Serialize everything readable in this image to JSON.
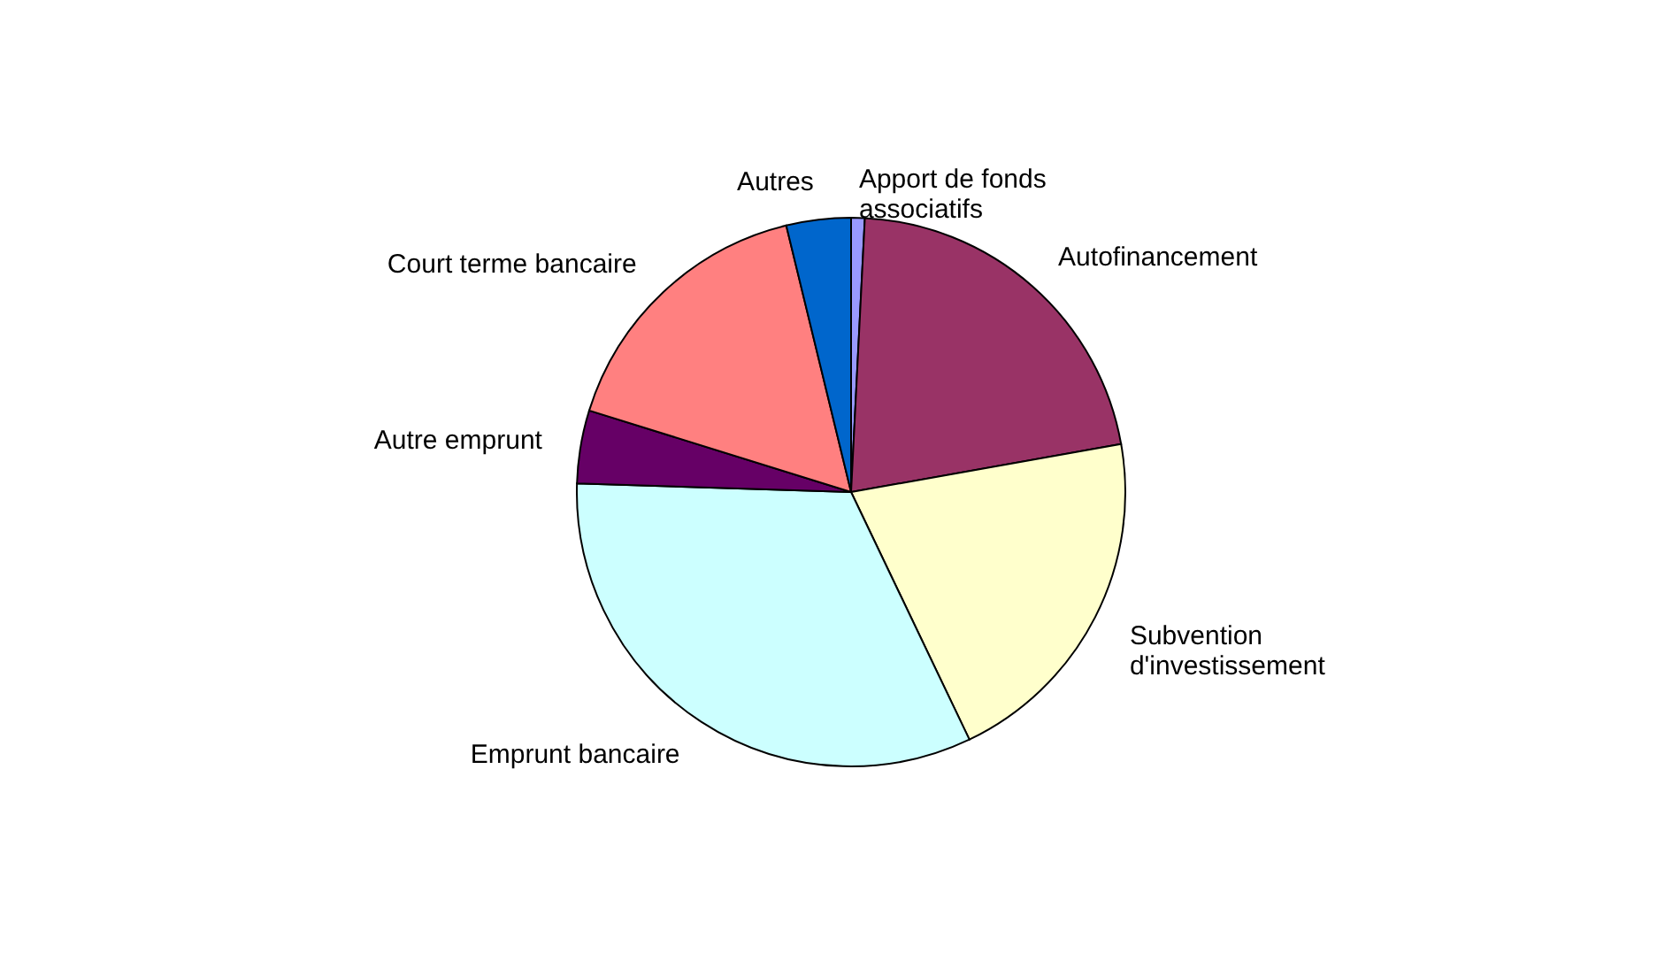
{
  "chart_data": {
    "type": "pie",
    "categories": [
      "Apport de fonds\nassociatifs",
      "Autofinancement",
      "Subvention\nd'investissement",
      "Emprunt bancaire",
      "Autre emprunt",
      "Court terme bancaire",
      "Autres"
    ],
    "values": [
      0.8,
      21.4,
      20.7,
      32.6,
      4.3,
      16.4,
      3.8
    ],
    "colors": [
      "#9999ff",
      "#993366",
      "#ffffcc",
      "#ccffff",
      "#660066",
      "#ff8080",
      "#0066cc"
    ]
  }
}
